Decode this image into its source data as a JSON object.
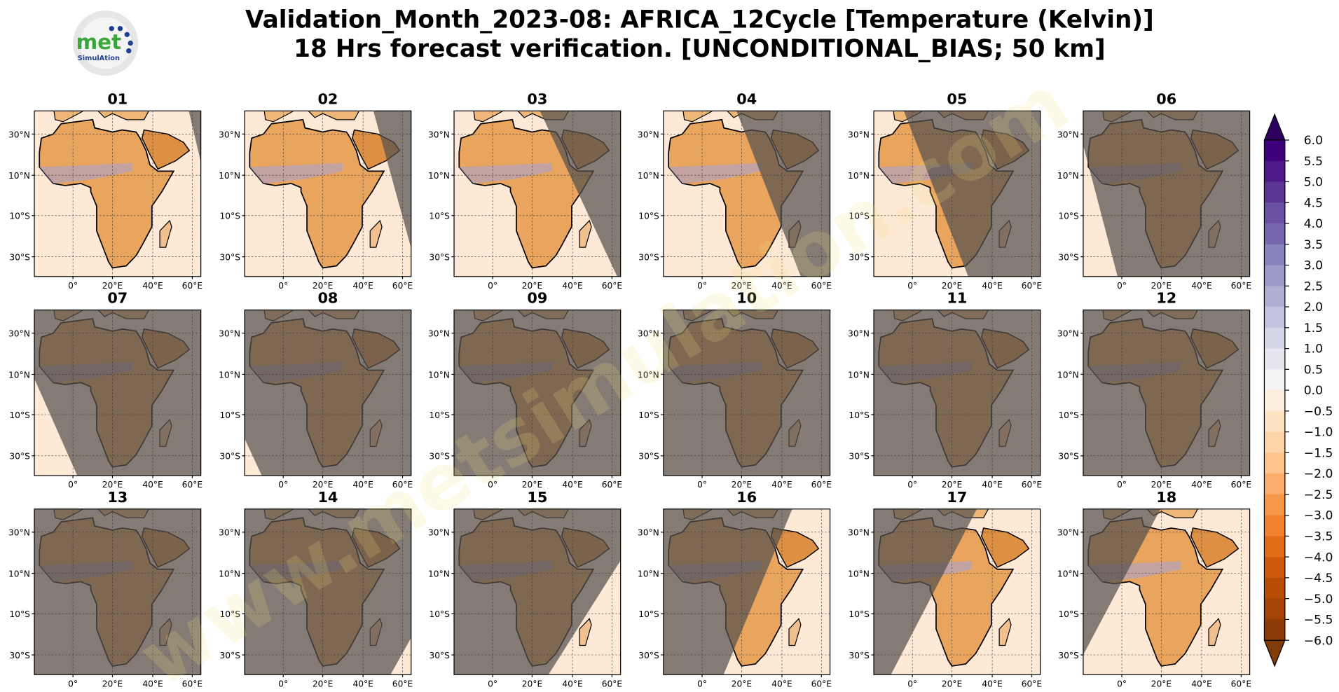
{
  "header": {
    "title_lines": [
      "Validation_Month_2023-08: AFRICA_12Cycle [Temperature (Kelvin)]",
      "18 Hrs forecast verification. [UNCONDITIONAL_BIAS; 50 km]"
    ]
  },
  "logo": {
    "text": "met",
    "subtext": "SimulAtion"
  },
  "watermark": "www.metsimulation.com",
  "panels": [
    "01",
    "02",
    "03",
    "04",
    "05",
    "06",
    "07",
    "08",
    "09",
    "10",
    "11",
    "12",
    "13",
    "14",
    "15",
    "16",
    "17",
    "18"
  ],
  "axis": {
    "y_tick_labels": [
      "30°N",
      "10°N",
      "10°S",
      "30°S"
    ],
    "x_tick_labels": [
      "0°",
      "20°E",
      "40°E",
      "60°E"
    ]
  },
  "colorbar": {
    "tick_labels": [
      "6.0",
      "5.5",
      "5.0",
      "4.5",
      "4.0",
      "3.5",
      "3.0",
      "2.5",
      "2.0",
      "1.5",
      "1.0",
      "0.5",
      "0.0",
      "−0.5",
      "−1.0",
      "−1.5",
      "−2.0",
      "−2.5",
      "−3.0",
      "−3.5",
      "−4.0",
      "−4.5",
      "−5.0",
      "−5.5",
      "−6.0"
    ],
    "colors": [
      "#3f007d",
      "#4d1888",
      "#5b3494",
      "#6a51a3",
      "#7867ae",
      "#8882bd",
      "#9c98c7",
      "#b0aed3",
      "#c4c3df",
      "#d6d6e9",
      "#e6e5f0",
      "#f3f3f5",
      "#feeedd",
      "#fde2c4",
      "#fdd4a7",
      "#fdc38b",
      "#fdad6b",
      "#f99749",
      "#f0812d",
      "#e26c17",
      "#d05a0b",
      "#ba4d06",
      "#a34305",
      "#8c3a06"
    ]
  }
}
